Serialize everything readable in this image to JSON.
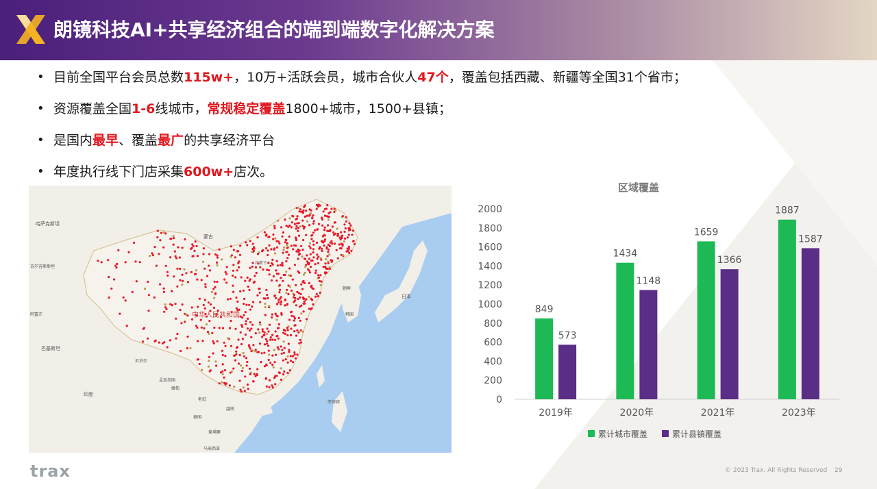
{
  "header": {
    "title": "朗镜科技AI+共享经济组合的端到端数字化解决方案",
    "logo_icon": "x-logo-icon",
    "colors": {
      "start": "#4a1f7a",
      "end": "#e4d6c4",
      "logo": "#f5b324"
    }
  },
  "bullets": [
    {
      "parts": [
        {
          "text": "目前全国平台会员总数",
          "hl": false
        },
        {
          "text": "115w+",
          "hl": true
        },
        {
          "text": "，10万+活跃会员，城市合伙人",
          "hl": false
        },
        {
          "text": "47个",
          "hl": true
        },
        {
          "text": "，覆盖包括西藏、新疆等全国31个省市；",
          "hl": false
        }
      ]
    },
    {
      "parts": [
        {
          "text": "资源覆盖全国",
          "hl": false
        },
        {
          "text": "1-6",
          "hl": true
        },
        {
          "text": "线城市，",
          "hl": false
        },
        {
          "text": "常规稳定覆盖",
          "hl": true
        },
        {
          "text": "1800+城市，1500+县镇；",
          "hl": false
        }
      ]
    },
    {
      "parts": [
        {
          "text": "是国内",
          "hl": false
        },
        {
          "text": "最早",
          "hl": true
        },
        {
          "text": "、覆盖",
          "hl": false
        },
        {
          "text": "最广",
          "hl": true
        },
        {
          "text": "的共享经济平台",
          "hl": false
        }
      ]
    },
    {
      "parts": [
        {
          "text": "年度执行线下门店采集",
          "hl": false
        },
        {
          "text": "600w+",
          "hl": true
        },
        {
          "text": "店次。",
          "hl": false
        }
      ]
    }
  ],
  "map": {
    "labels": {
      "mongolia": "蒙古",
      "kazakhstan": "哈萨克斯坦",
      "kyrgyzstan": "吉尔吉斯斯坦",
      "afghanistan": "阿富汗",
      "pakistan": "巴基斯坦",
      "india": "印度",
      "nepal": "尼泊尔",
      "bangladesh": "孟加拉国",
      "myanmar": "缅甸",
      "laos": "老挝",
      "vietnam": "越南",
      "thailand": "泰国",
      "cambodia": "柬埔寨",
      "north_korea": "朝鲜",
      "korea": "韩国",
      "japan": "日本",
      "philippines": "菲律宾",
      "malaysia": "马来西亚",
      "china": "中华人民共和国",
      "inner_mongolia": "内蒙古"
    },
    "colors": {
      "sea": "#a9cdf0",
      "land": "#f2efe9",
      "china": "#f6f3ec",
      "border": "#d8c49a",
      "marker": "#e8182a",
      "marker_alt": "#b79a52"
    }
  },
  "chart_data": {
    "type": "bar",
    "title": "区域覆盖",
    "categories": [
      "2019年",
      "2020年",
      "2021年",
      "2023年"
    ],
    "series": [
      {
        "name": "累计城市覆盖",
        "values": [
          849,
          1434,
          1659,
          1887
        ],
        "color": "#1db954"
      },
      {
        "name": "累计县镇覆盖",
        "values": [
          573,
          1148,
          1366,
          1587
        ],
        "color": "#5a2d86"
      }
    ],
    "ylim": [
      0,
      2000
    ],
    "yticks": [
      0,
      200,
      400,
      600,
      800,
      1000,
      1200,
      1400,
      1600,
      1800,
      2000
    ],
    "xlabel": "",
    "ylabel": "",
    "grid": false,
    "legend": "bottom"
  },
  "footer": {
    "brand": "trax",
    "copyright": "© 2023 Trax. All Rights Reserved",
    "page": "29"
  }
}
